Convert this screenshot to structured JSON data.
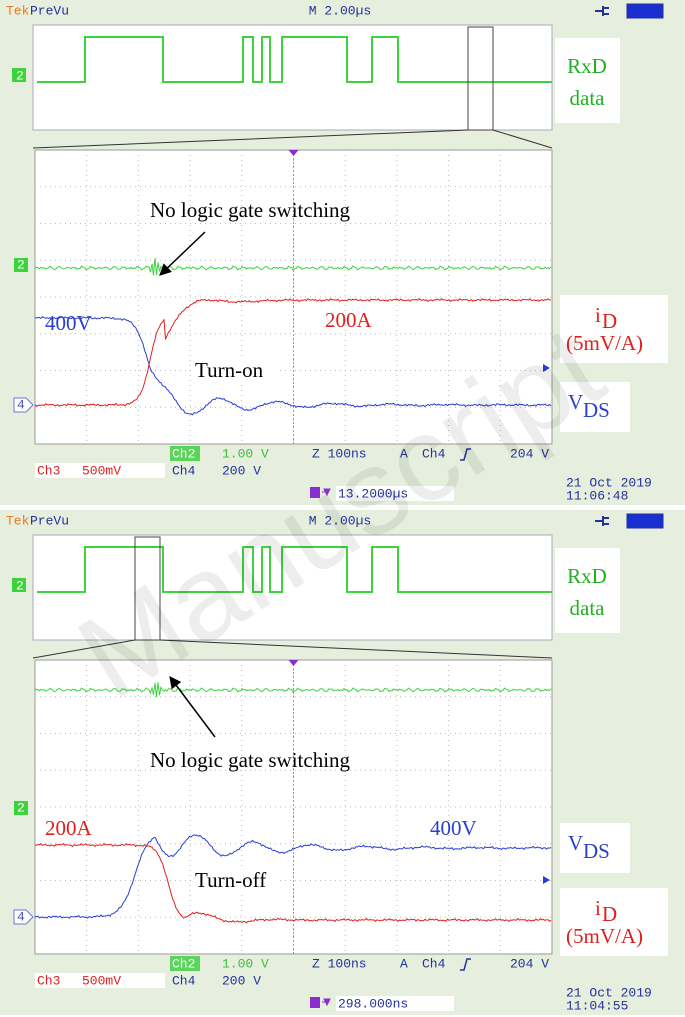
{
  "watermark": "Manuscript",
  "panels": [
    {
      "header": {
        "brand": "Tek",
        "mode": "PreVu",
        "timebase": "M 2.00µs"
      },
      "preview_label": [
        "RxD",
        "data"
      ],
      "channel_markers": [
        "2",
        "2",
        "4"
      ],
      "annotation": "No logic gate switching",
      "voltage_label": "400V",
      "current_label": "200A",
      "event": "Turn-on",
      "current_axis": {
        "symbol": "i",
        "subscript": "D",
        "scale": "(5mV/A)"
      },
      "voltage_axis": {
        "symbol": "V",
        "subscript": "DS"
      },
      "status": {
        "ch2": "Ch2",
        "ch2_scale": "1.00 V",
        "zoom": "Z 100ns",
        "trigger": "A",
        "trigger_source": "Ch4",
        "trigger_level": "204 V",
        "ch3": "Ch3",
        "ch3_scale": "500mV",
        "ch4": "Ch4",
        "ch4_scale": "200 V",
        "date": "21 Oct 2019",
        "time": "11:06:48",
        "position": "13.2000µs"
      }
    },
    {
      "header": {
        "brand": "Tek",
        "mode": "PreVu",
        "timebase": "M 2.00µs"
      },
      "preview_label": [
        "RxD",
        "data"
      ],
      "channel_markers": [
        "2",
        "2",
        "4"
      ],
      "annotation": "No logic gate switching",
      "voltage_label": "400V",
      "current_label": "200A",
      "event": "Turn-off",
      "current_axis": {
        "symbol": "i",
        "subscript": "D",
        "scale": "(5mV/A)"
      },
      "voltage_axis": {
        "symbol": "V",
        "subscript": "DS"
      },
      "status": {
        "ch2": "Ch2",
        "ch2_scale": "1.00 V",
        "zoom": "Z 100ns",
        "trigger": "A",
        "trigger_source": "Ch4",
        "trigger_level": "204 V",
        "ch3": "Ch3",
        "ch3_scale": "500mV",
        "ch4": "Ch4",
        "ch4_scale": "200 V",
        "date": "21 Oct 2019",
        "time": "11:04:55",
        "position": "298.000ns"
      }
    }
  ]
}
